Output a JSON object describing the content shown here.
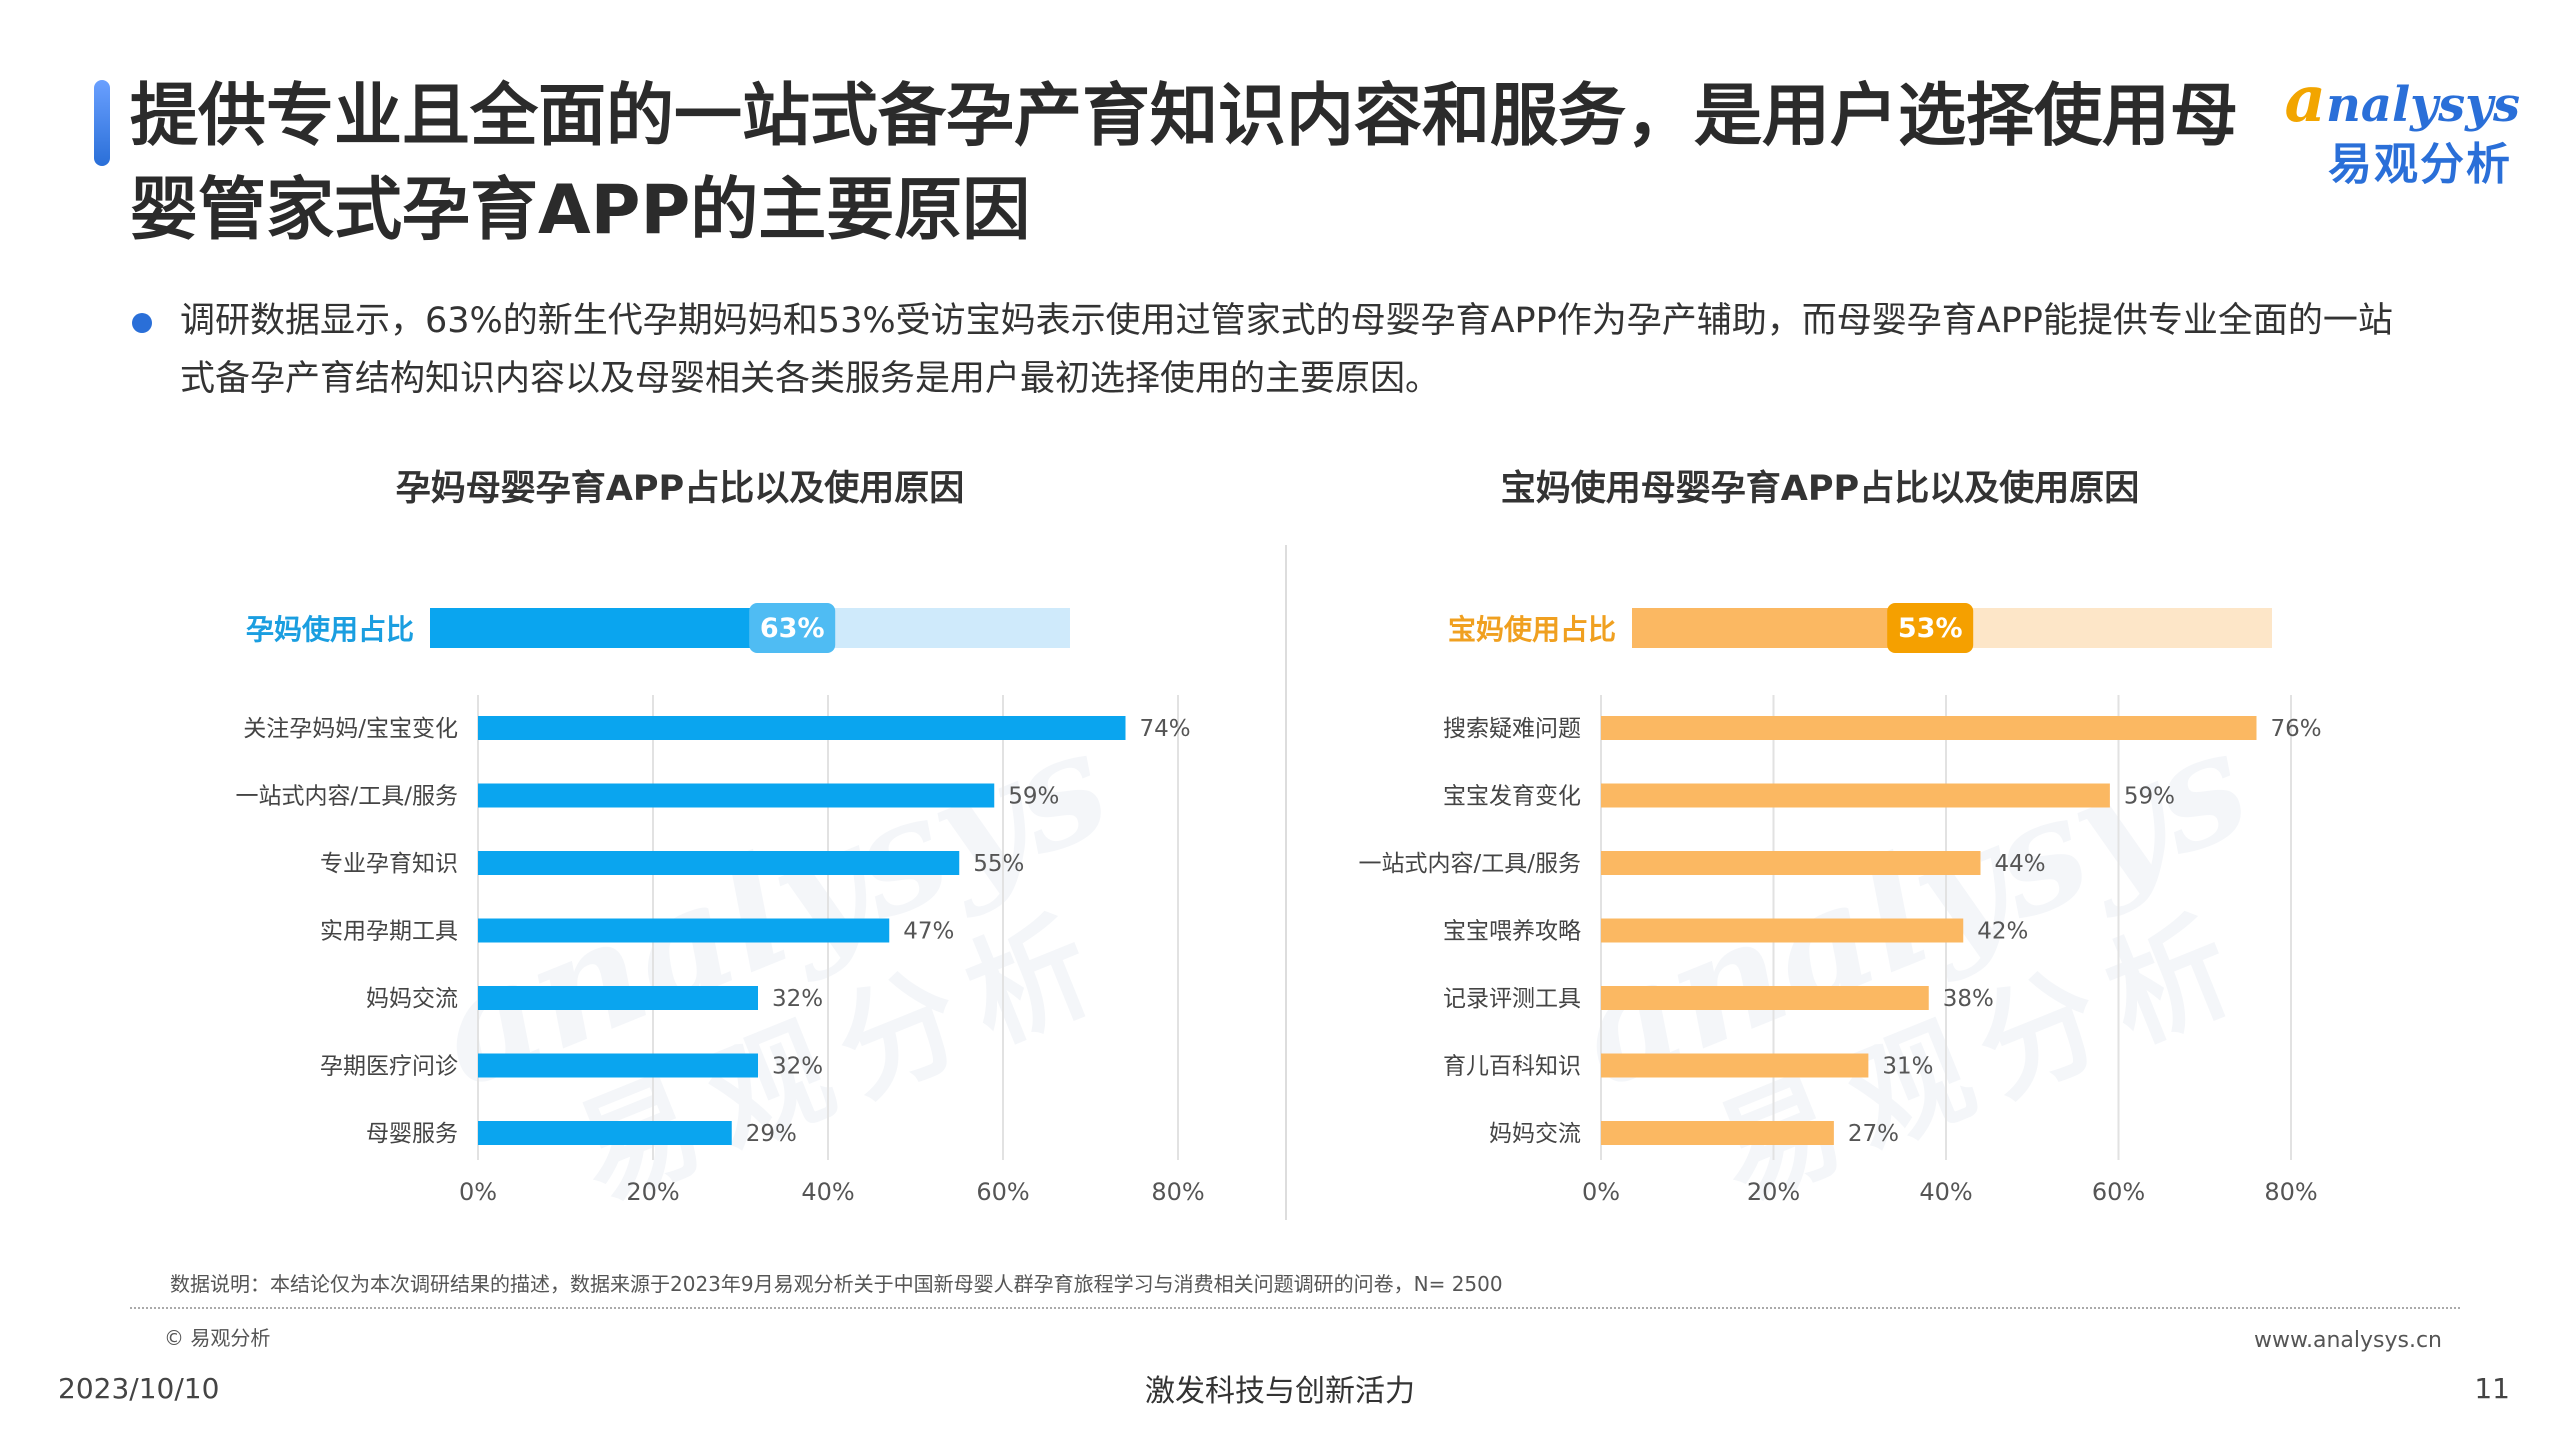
{
  "title": "提供专业且全面的一站式备孕产育知识内容和服务，是用户选择使用母婴管家式孕育APP的主要原因",
  "logo": {
    "en": "nalysys",
    "en_initial": "a",
    "cn": "易观分析"
  },
  "summary": "调研数据显示，63%的新生代孕期妈妈和53%受访宝妈表示使用过管家式的母婴孕育APP作为孕产辅助，而母婴孕育APP能提供专业全面的一站式备孕产育结构知识内容以及母婴相关各类服务是用户最初选择使用的主要原因。",
  "chart_data": [
    {
      "type": "bar",
      "orientation": "horizontal",
      "title": "孕妈母婴孕育APP占比以及使用原因",
      "usage": {
        "label": "孕妈使用占比",
        "value": 63,
        "display": "63%"
      },
      "categories": [
        "关注孕妈妈/宝宝变化",
        "一站式内容/工具/服务",
        "专业孕育知识",
        "实用孕期工具",
        "妈妈交流",
        "孕期医疗问诊",
        "母婴服务"
      ],
      "values": [
        74,
        59,
        55,
        47,
        32,
        32,
        29
      ],
      "value_labels": [
        "74%",
        "59%",
        "55%",
        "47%",
        "32%",
        "32%",
        "29%"
      ],
      "xlim": [
        0,
        80
      ],
      "ticks": [
        "0%",
        "20%",
        "40%",
        "60%",
        "80%"
      ],
      "grid": true,
      "color": "#0aa5ef",
      "track_color": "#cfeafb"
    },
    {
      "type": "bar",
      "orientation": "horizontal",
      "title": "宝妈使用母婴孕育APP占比以及使用原因",
      "usage": {
        "label": "宝妈使用占比",
        "value": 53,
        "display": "53%"
      },
      "categories": [
        "搜索疑难问题",
        "宝宝发育变化",
        "一站式内容/工具/服务",
        "宝宝喂养攻略",
        "记录评测工具",
        "育儿百科知识",
        "妈妈交流"
      ],
      "values": [
        76,
        59,
        44,
        42,
        38,
        31,
        27
      ],
      "value_labels": [
        "76%",
        "59%",
        "44%",
        "42%",
        "38%",
        "31%",
        "27%"
      ],
      "xlim": [
        0,
        80
      ],
      "ticks": [
        "0%",
        "20%",
        "40%",
        "60%",
        "80%"
      ],
      "grid": true,
      "color": "#fbb862",
      "track_color": "#fde6c8",
      "badge_color": "#f5a000"
    }
  ],
  "footer": {
    "note": "数据说明：本结论仅为本次调研结果的描述，数据来源于2023年9月易观分析关于中国新母婴人群孕育旅程学习与消费相关问题调研的问卷，N= 2500",
    "copyright": "© 易观分析",
    "website": "www.analysys.cn",
    "date": "2023/10/10",
    "slogan": "激发科技与创新活力",
    "page": "11"
  }
}
